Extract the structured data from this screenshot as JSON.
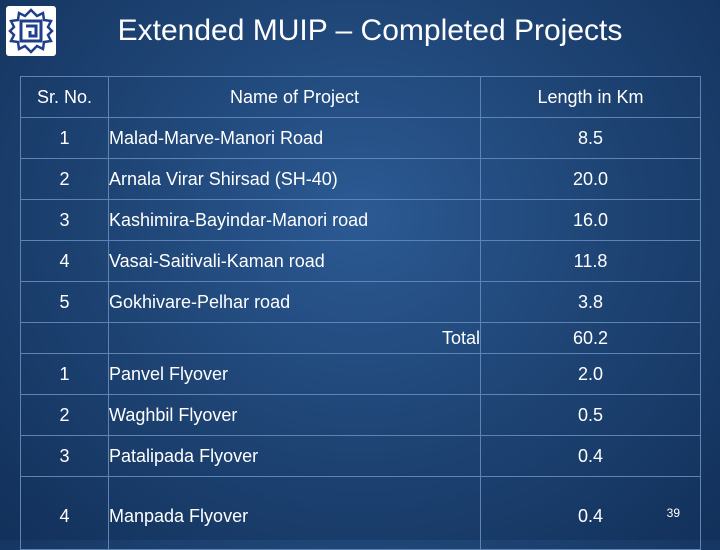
{
  "slide": {
    "title": "Extended MUIP – Completed Projects",
    "page_number": "39"
  },
  "table": {
    "headers": {
      "sr_no": "Sr. No.",
      "name": "Name of Project",
      "length": "Length in Km"
    },
    "roads": [
      {
        "sr": "1",
        "name": "Malad-Marve-Manori Road",
        "length": "8.5"
      },
      {
        "sr": "2",
        "name": "Arnala Virar Shirsad (SH-40)",
        "length": "20.0"
      },
      {
        "sr": "3",
        "name": "Kashimira-Bayindar-Manori road",
        "length": "16.0"
      },
      {
        "sr": "4",
        "name": "Vasai-Saitivali-Kaman road",
        "length": "11.8"
      },
      {
        "sr": "5",
        "name": "Gokhivare-Pelhar road",
        "length": "3.8"
      }
    ],
    "total": {
      "label": "Total",
      "value": "60.2"
    },
    "flyovers": [
      {
        "sr": "1",
        "name": "Panvel Flyover",
        "length": "2.0"
      },
      {
        "sr": "2",
        "name": "Waghbil Flyover",
        "length": "0.5"
      },
      {
        "sr": "3",
        "name": "Patalipada Flyover",
        "length": "0.4"
      },
      {
        "sr": "4",
        "name": "Manpada Flyover",
        "length": "0.4"
      }
    ]
  }
}
